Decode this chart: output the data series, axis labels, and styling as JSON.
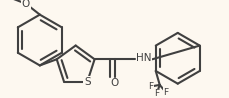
{
  "bg_color": "#fdf8f0",
  "line_color": "#404040",
  "lw": 1.5,
  "fs": 7.5,
  "figsize": [
    2.29,
    0.98
  ],
  "dpi": 100,
  "xlim": [
    0.0,
    2.3
  ],
  "ylim": [
    0.02,
    1.0
  ],
  "r_hex": 0.255,
  "r_thi": 0.2,
  "dbl_off": 0.044,
  "dbl_shrink": 0.14
}
